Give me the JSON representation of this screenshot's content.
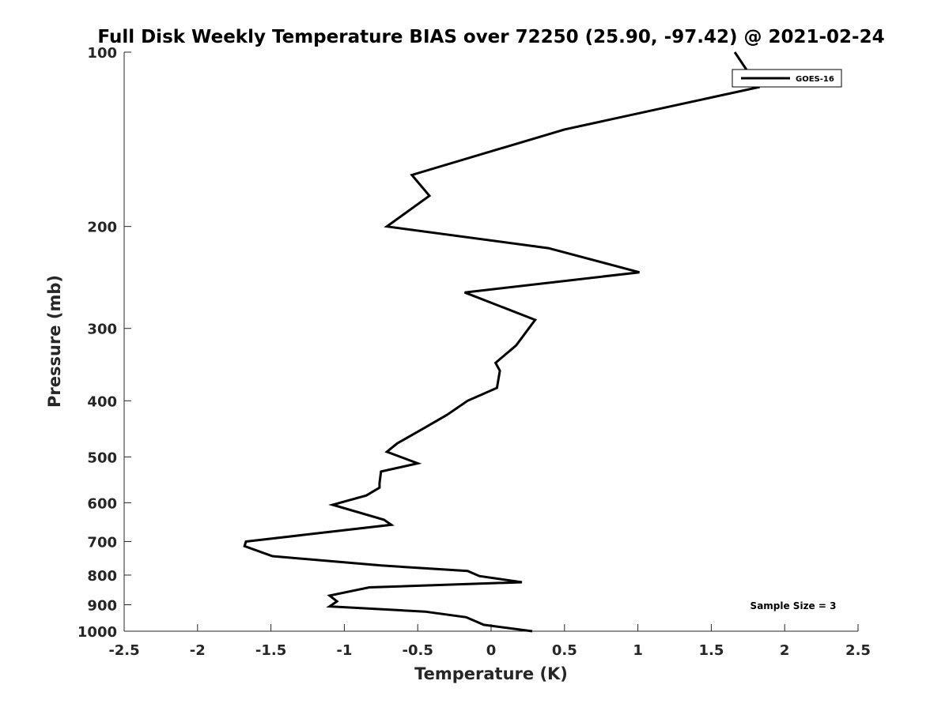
{
  "chart_data": {
    "type": "line",
    "title": "Full Disk Weekly Temperature BIAS over 72250 (25.90, -97.42) @ 2021-02-24",
    "xlabel": "Temperature (K)",
    "ylabel": "Pressure (mb)",
    "xlim": [
      -2.5,
      2.5
    ],
    "ylim": [
      1000,
      100
    ],
    "yscale": "log",
    "y_inverted": true,
    "grid": false,
    "legend_position": "top-right",
    "x_ticks": [
      -2.5,
      -2,
      -1.5,
      -1,
      -0.5,
      0,
      0.5,
      1,
      1.5,
      2,
      2.5
    ],
    "x_tick_labels": [
      "-2.5",
      "-2",
      "-1.5",
      "-1",
      "-0.5",
      "0",
      "0.5",
      "1",
      "1.5",
      "2",
      "2.5"
    ],
    "y_ticks": [
      100,
      200,
      300,
      400,
      500,
      600,
      700,
      800,
      900,
      1000
    ],
    "y_tick_labels": [
      "100",
      "200",
      "300",
      "400",
      "500",
      "600",
      "700",
      "800",
      "900",
      "1000"
    ],
    "series": [
      {
        "name": "GOES-16",
        "color": "#000000",
        "points": [
          [
            1.66,
            100
          ],
          [
            1.82,
            115
          ],
          [
            0.5,
            136
          ],
          [
            -0.54,
            163
          ],
          [
            -0.42,
            177
          ],
          [
            -0.71,
            200
          ],
          [
            0.39,
            218
          ],
          [
            1.01,
            240
          ],
          [
            -0.18,
            260
          ],
          [
            0.3,
            290
          ],
          [
            0.17,
            321
          ],
          [
            0.03,
            344
          ],
          [
            0.06,
            355
          ],
          [
            0.04,
            380
          ],
          [
            -0.16,
            400
          ],
          [
            -0.3,
            423
          ],
          [
            -0.45,
            445
          ],
          [
            -0.64,
            474
          ],
          [
            -0.71,
            490
          ],
          [
            -0.5,
            513
          ],
          [
            -0.75,
            530
          ],
          [
            -0.76,
            555
          ],
          [
            -0.76,
            565
          ],
          [
            -0.85,
            583
          ],
          [
            -1.08,
            605
          ],
          [
            -0.73,
            642
          ],
          [
            -0.68,
            655
          ],
          [
            -1.67,
            700
          ],
          [
            -1.68,
            713
          ],
          [
            -1.49,
            742
          ],
          [
            -0.75,
            770
          ],
          [
            -0.16,
            787
          ],
          [
            -0.08,
            803
          ],
          [
            0.21,
            823
          ],
          [
            -0.83,
            840
          ],
          [
            -1.1,
            868
          ],
          [
            -1.05,
            888
          ],
          [
            -1.1,
            906
          ],
          [
            -0.45,
            925
          ],
          [
            -0.17,
            946
          ],
          [
            -0.05,
            975
          ],
          [
            0.28,
            1000
          ]
        ]
      }
    ],
    "annotations": [
      "Sample Size = 3"
    ]
  }
}
